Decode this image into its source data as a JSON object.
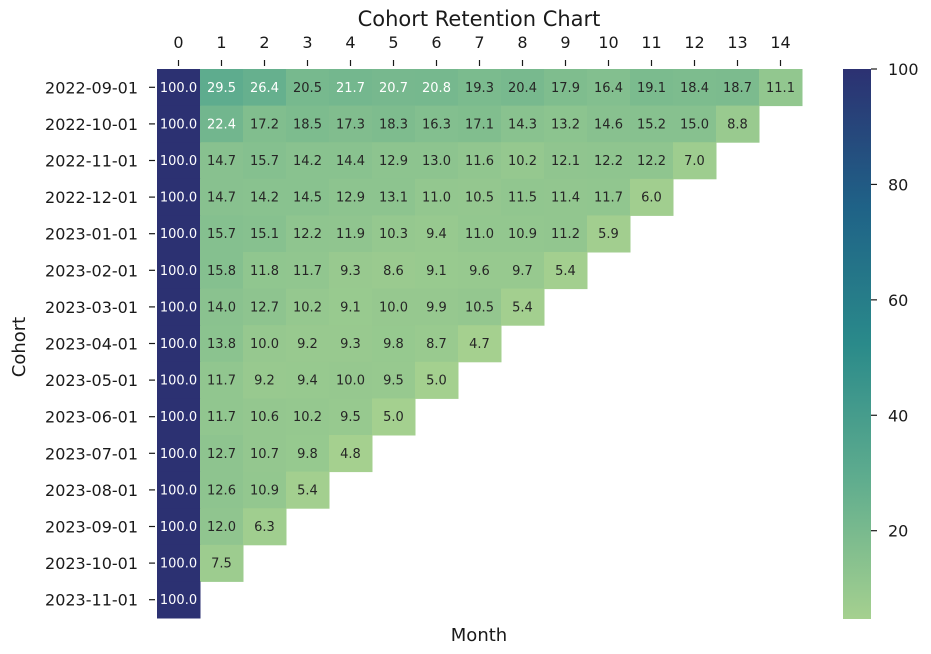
{
  "chart_data": {
    "type": "heatmap",
    "title": "Cohort Retention Chart",
    "xlabel": "Month",
    "ylabel": "Cohort",
    "x_tick_position": "top",
    "x": [
      0,
      1,
      2,
      3,
      4,
      5,
      6,
      7,
      8,
      9,
      10,
      11,
      12,
      13,
      14
    ],
    "y": [
      "2022-09-01",
      "2022-10-01",
      "2022-11-01",
      "2022-12-01",
      "2023-01-01",
      "2023-02-01",
      "2023-03-01",
      "2023-04-01",
      "2023-05-01",
      "2023-06-01",
      "2023-07-01",
      "2023-08-01",
      "2023-09-01",
      "2023-10-01",
      "2023-11-01"
    ],
    "values": [
      [
        100.0,
        29.5,
        26.4,
        20.5,
        21.7,
        20.7,
        20.8,
        19.3,
        20.4,
        17.9,
        16.4,
        19.1,
        18.4,
        18.7,
        11.1
      ],
      [
        100.0,
        22.4,
        17.2,
        18.5,
        17.3,
        18.3,
        16.3,
        17.1,
        14.3,
        13.2,
        14.6,
        15.2,
        15.0,
        8.8
      ],
      [
        100.0,
        14.7,
        15.7,
        14.2,
        14.4,
        12.9,
        13.0,
        11.6,
        10.2,
        12.1,
        12.2,
        12.2,
        7.0
      ],
      [
        100.0,
        14.7,
        14.2,
        14.5,
        12.9,
        13.1,
        11.0,
        10.5,
        11.5,
        11.4,
        11.7,
        6.0
      ],
      [
        100.0,
        15.7,
        15.1,
        12.2,
        11.9,
        10.3,
        9.4,
        11.0,
        10.9,
        11.2,
        5.9
      ],
      [
        100.0,
        15.8,
        11.8,
        11.7,
        9.3,
        8.6,
        9.1,
        9.6,
        9.7,
        5.4
      ],
      [
        100.0,
        14.0,
        12.7,
        10.2,
        9.1,
        10.0,
        9.9,
        10.5,
        5.4
      ],
      [
        100.0,
        13.8,
        10.0,
        9.2,
        9.3,
        9.8,
        8.7,
        4.7
      ],
      [
        100.0,
        11.7,
        9.2,
        9.4,
        10.0,
        9.5,
        5.0
      ],
      [
        100.0,
        11.7,
        10.6,
        10.2,
        9.5,
        5.0
      ],
      [
        100.0,
        12.7,
        10.7,
        9.8,
        4.8
      ],
      [
        100.0,
        12.6,
        10.9,
        5.4
      ],
      [
        100.0,
        12.0,
        6.3
      ],
      [
        100.0,
        7.5
      ],
      [
        100.0
      ]
    ],
    "value_format": "1 decimal",
    "colorbar": {
      "colormap": "crest",
      "range": [
        4.7,
        100
      ],
      "ticks": [
        20,
        40,
        60,
        80,
        100
      ],
      "colors": [
        "#a5d08f",
        "#60ad8e",
        "#2a8a8a",
        "#1f6287",
        "#2c3172"
      ]
    }
  }
}
